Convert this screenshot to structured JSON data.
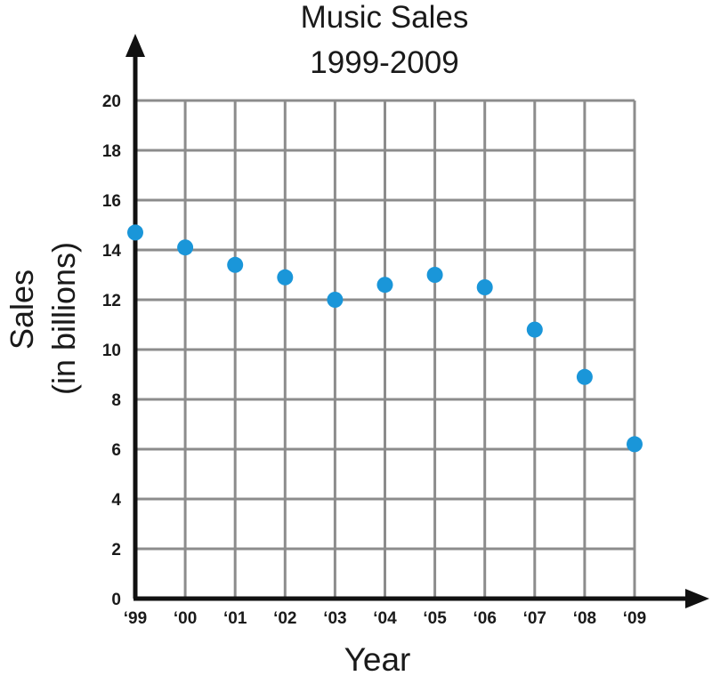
{
  "chart_data": {
    "type": "scatter",
    "title": "Music Sales",
    "subtitle": "1999-2009",
    "xlabel": "Year",
    "ylabel": "Sales",
    "ylabel_sub": "(in billions)",
    "categories": [
      "‘99",
      "‘00",
      "‘01",
      "‘02",
      "‘03",
      "‘04",
      "‘05",
      "‘06",
      "‘07",
      "‘08",
      "‘09"
    ],
    "years": [
      1999,
      2000,
      2001,
      2002,
      2003,
      2004,
      2005,
      2006,
      2007,
      2008,
      2009
    ],
    "values": [
      14.7,
      14.1,
      13.4,
      12.9,
      12.0,
      12.6,
      13.0,
      12.5,
      10.8,
      8.9,
      6.2
    ],
    "ylim": [
      0,
      20
    ],
    "yticks": [
      "0",
      "2",
      "4",
      "6",
      "8",
      "10",
      "12",
      "14",
      "16",
      "18",
      "20"
    ],
    "grid": true,
    "point_color": "#1a96d9",
    "grid_color": "#8c8c8c",
    "axis_color": "#111111"
  }
}
